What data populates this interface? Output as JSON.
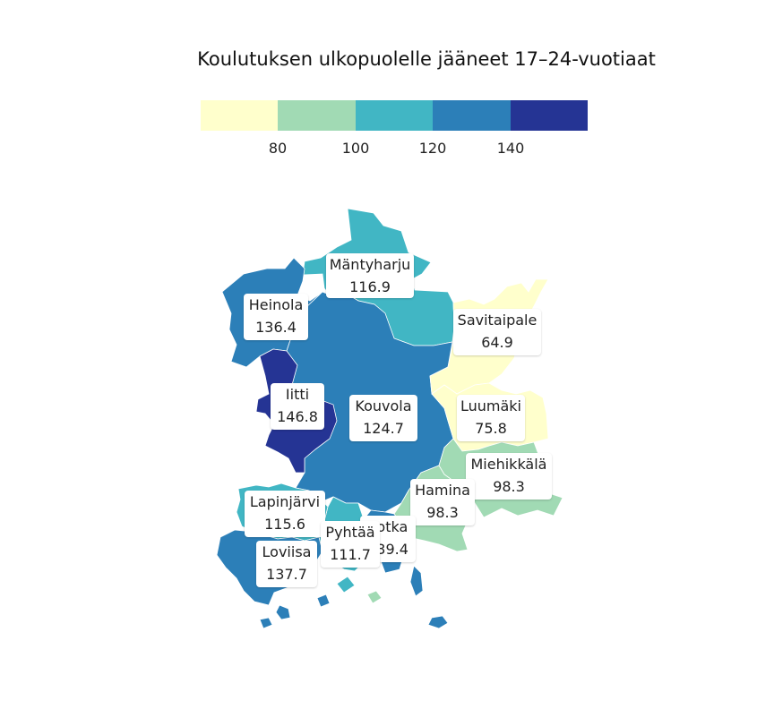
{
  "title": "Koulutuksen ulkopuolelle jääneet 17–24-vuotiaat",
  "legend": {
    "bins": [
      {
        "color": "#ffffcc"
      },
      {
        "color": "#a1dab4"
      },
      {
        "color": "#41b6c4"
      },
      {
        "color": "#2c7fb8"
      },
      {
        "color": "#253494"
      }
    ],
    "ticks": [
      "80",
      "100",
      "120",
      "140"
    ]
  },
  "colors": {
    "bin1": "#ffffcc",
    "bin2": "#a1dab4",
    "bin3": "#41b6c4",
    "bin4": "#2c7fb8",
    "bin5": "#253494"
  },
  "regions": [
    {
      "name": "Mäntyharju",
      "value": "116.9"
    },
    {
      "name": "Heinola",
      "value": "136.4"
    },
    {
      "name": "Savitaipale",
      "value": "64.9"
    },
    {
      "name": "Iitti",
      "value": "146.8"
    },
    {
      "name": "Kouvola",
      "value": "124.7"
    },
    {
      "name": "Luumäki",
      "value": "75.8"
    },
    {
      "name": "Miehikkälä",
      "value": "98.3"
    },
    {
      "name": "Hamina",
      "value": "98.3"
    },
    {
      "name": "Lapinjärvi",
      "value": "115.6"
    },
    {
      "name": "Kotka",
      "value": "139.4"
    },
    {
      "name": "Pyhtää",
      "value": "111.7"
    },
    {
      "name": "Loviisa",
      "value": "137.7"
    }
  ]
}
